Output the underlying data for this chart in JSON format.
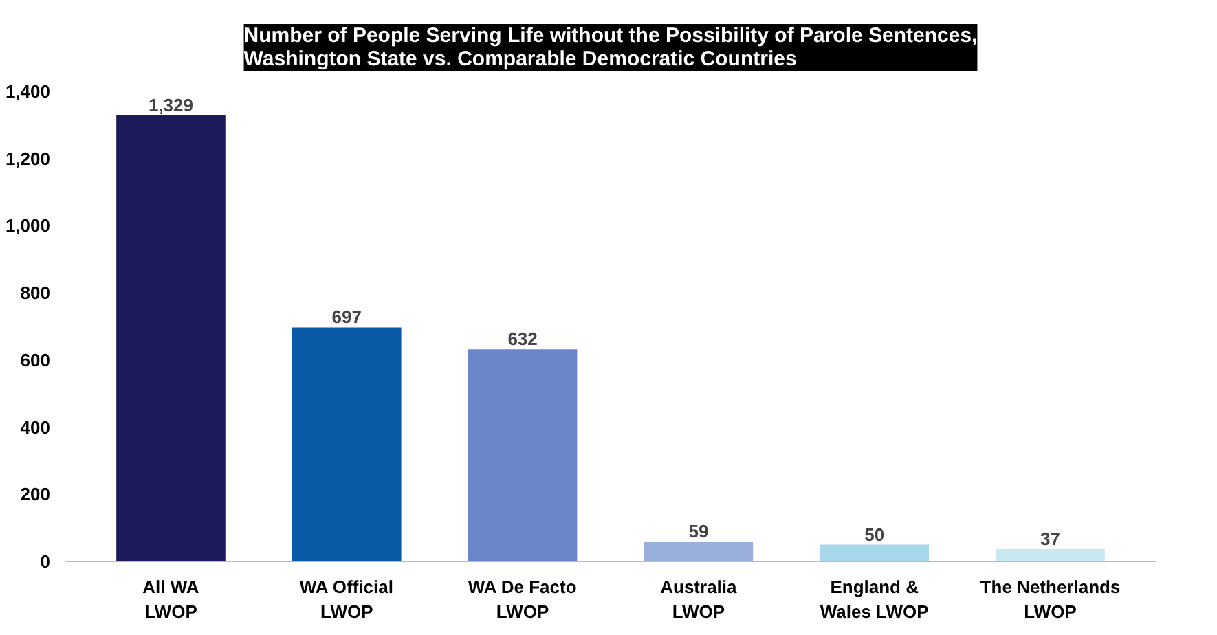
{
  "chart_data": {
    "type": "bar",
    "title": "Number of People Serving Life without the Possibility of Parole Sentences,\nWashington State vs. Comparable Democratic Countries",
    "categories": [
      "All WA\nLWOP",
      "WA Official\nLWOP",
      "WA De Facto\nLWOP",
      "Australia\nLWOP",
      "England &\nWales LWOP",
      "The Netherlands\nLWOP"
    ],
    "values": [
      1329,
      697,
      632,
      59,
      50,
      37
    ],
    "colors": [
      "#1c1a5a",
      "#0a5aa8",
      "#6a86c8",
      "#9aaedc",
      "#a8d8ec",
      "#c8e8f2"
    ],
    "value_labels": [
      "1,329",
      "697",
      "632",
      "59",
      "50",
      "37"
    ],
    "ylim": [
      0,
      1400
    ],
    "yticks": [
      {
        "value": 0,
        "label": "0"
      },
      {
        "value": 200,
        "label": "200"
      },
      {
        "value": 400,
        "label": "400"
      },
      {
        "value": 600,
        "label": "600"
      },
      {
        "value": 800,
        "label": "800"
      },
      {
        "value": 1000,
        "label": "1,000"
      },
      {
        "value": 1200,
        "label": "1,200"
      },
      {
        "value": 1400,
        "label": "1,400"
      }
    ],
    "grid": false
  }
}
